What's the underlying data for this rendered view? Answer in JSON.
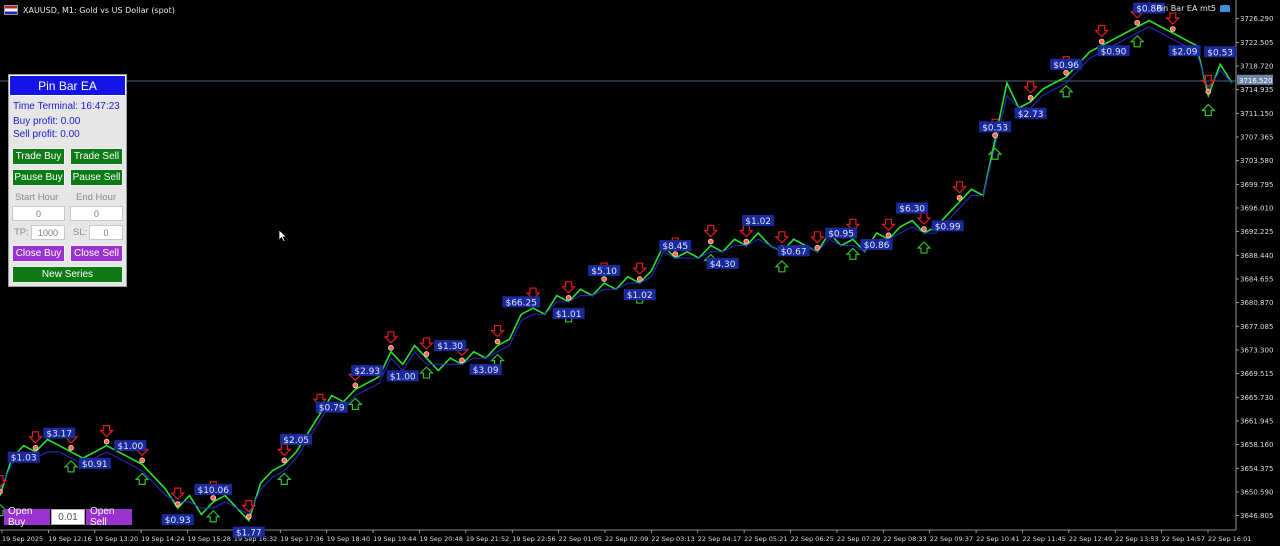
{
  "window": {
    "title": "XAUUSD, M1: Gold vs US Dollar (spot)",
    "ea_label": "Pin Bar EA mt5",
    "flag_icon": "chart-flag-icon",
    "ea_icon": "graduation-hat-icon"
  },
  "panel": {
    "header": "Pin Bar EA",
    "time_terminal": "Time Terminal: 16:47:23",
    "buy_profit": "Buy profit: 0.00",
    "sell_profit": "Sell profit: 0.00",
    "trade_buy": "Trade Buy",
    "trade_sell": "Trade Sell",
    "pause_buy": "Pause Buy",
    "pause_sell": "Pause Sell",
    "start_hour_label": "Start Hour",
    "end_hour_label": "End Hour",
    "start_hour_value": "0",
    "end_hour_value": "0",
    "tp_label": "TP:",
    "tp_value": "1000",
    "sl_label": "SL:",
    "sl_value": "0",
    "close_buy": "Close Buy",
    "close_sell": "Close Sell",
    "new_series": "New Series"
  },
  "bottom": {
    "open_buy": "Open Buy",
    "lot": "0.01",
    "open_sell": "Open Sell"
  },
  "chart_data": {
    "type": "line",
    "symbol": "XAUUSD",
    "timeframe": "M1",
    "current_price": "3716.520",
    "ylim": [
      3644.5,
      3728.0
    ],
    "price_ticks": [
      "3726.290",
      "3722.505",
      "3718.720",
      "3714.935",
      "3711.150",
      "3707.365",
      "3703.580",
      "3699.795",
      "3696.010",
      "3692.225",
      "3688.440",
      "3684.655",
      "3680.870",
      "3677.085",
      "3673.300",
      "3669.515",
      "3665.730",
      "3661.945",
      "3658.160",
      "3654.375",
      "3650.590",
      "3646.805"
    ],
    "time_ticks": [
      "19 Sep 2025",
      "19 Sep 12:16",
      "19 Sep 13:20",
      "19 Sep 14:24",
      "19 Sep 15:28",
      "19 Sep 16:32",
      "19 Sep 17:36",
      "19 Sep 18:40",
      "19 Sep 19:44",
      "19 Sep 20:48",
      "19 Sep 21:52",
      "19 Sep 22:56",
      "22 Sep 01:05",
      "22 Sep 02:09",
      "22 Sep 03:13",
      "22 Sep 04:17",
      "22 Sep 05:21",
      "22 Sep 06:25",
      "22 Sep 07:29",
      "22 Sep 08:33",
      "22 Sep 09:37",
      "22 Sep 10:41",
      "22 Sep 11:45",
      "22 Sep 12:49",
      "22 Sep 13:53",
      "22 Sep 14:57",
      "22 Sep 16:01"
    ],
    "series": [
      {
        "color": "#27e22f",
        "values": [
          3650,
          3656,
          3658,
          3657,
          3659,
          3658,
          3657,
          3656,
          3657,
          3658,
          3657,
          3656,
          3655,
          3653,
          3651,
          3648,
          3650,
          3647,
          3649,
          3650,
          3648,
          3646,
          3652,
          3654,
          3655,
          3657,
          3660,
          3663,
          3666,
          3665,
          3667,
          3668,
          3669,
          3673,
          3671,
          3674,
          3672,
          3670,
          3672,
          3671,
          3673,
          3672,
          3674,
          3675,
          3679,
          3680,
          3679,
          3682,
          3681,
          3683,
          3682,
          3684,
          3683,
          3685,
          3684,
          3686,
          3690,
          3688,
          3689,
          3688,
          3690,
          3689,
          3691,
          3690,
          3692,
          3690,
          3689,
          3691,
          3690,
          3689,
          3692,
          3690,
          3691,
          3689,
          3692,
          3691,
          3693,
          3694,
          3692,
          3693,
          3695,
          3697,
          3699,
          3698,
          3707,
          3716,
          3712,
          3713,
          3715,
          3716,
          3717,
          3719,
          3721,
          3722,
          3723,
          3724,
          3725,
          3726,
          3725,
          3724,
          3723,
          3722,
          3714,
          3719,
          3716
        ]
      },
      {
        "color": "#2a2ad0",
        "values": [
          3651,
          3655,
          3657,
          3656,
          3657,
          3657,
          3656,
          3655,
          3656,
          3657,
          3656,
          3655,
          3654,
          3652,
          3650,
          3649,
          3649,
          3648,
          3648,
          3649,
          3648,
          3647,
          3651,
          3653,
          3654,
          3656,
          3659,
          3662,
          3665,
          3664,
          3666,
          3667,
          3668,
          3672,
          3670,
          3673,
          3671,
          3671,
          3671,
          3671,
          3672,
          3672,
          3673,
          3674,
          3678,
          3679,
          3679,
          3681,
          3681,
          3682,
          3682,
          3683,
          3683,
          3684,
          3684,
          3685,
          3689,
          3688,
          3688,
          3688,
          3689,
          3689,
          3690,
          3690,
          3691,
          3690,
          3689,
          3690,
          3690,
          3689,
          3691,
          3690,
          3690,
          3689,
          3691,
          3691,
          3692,
          3693,
          3692,
          3692,
          3694,
          3696,
          3698,
          3698,
          3706,
          3714,
          3712,
          3712,
          3714,
          3715,
          3716,
          3718,
          3720,
          3721,
          3722,
          3723,
          3724,
          3725,
          3724,
          3723,
          3722,
          3721,
          3715,
          3718,
          3716
        ]
      }
    ],
    "profit_labels": [
      "$1.03",
      "$3.17",
      "$0.91",
      "$1.00",
      "$0.93",
      "$10.06",
      "$1.77",
      "$2.05",
      "$0.79",
      "$2.93",
      "$1.00",
      "$1.30",
      "$3.09",
      "$66.25",
      "$1.01",
      "$5.10",
      "$1.02",
      "$8.45",
      "$4.30",
      "$1.02",
      "$0.67",
      "$0.95",
      "$0.86",
      "$6.30",
      "$0.99",
      "$0.53",
      "$2.73",
      "$0.96",
      "$0.90",
      "$0.86",
      "$2.09",
      "$0.53"
    ]
  }
}
